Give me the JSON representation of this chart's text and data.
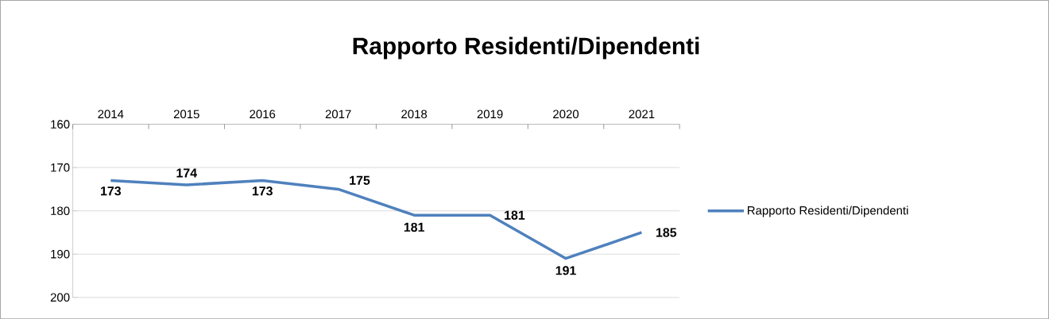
{
  "chart_data": {
    "type": "line",
    "title": "Rapporto Residenti/Dipendenti",
    "categories": [
      "2014",
      "2015",
      "2016",
      "2017",
      "2018",
      "2019",
      "2020",
      "2021"
    ],
    "series": [
      {
        "name": "Rapporto Residenti/Dipendenti",
        "color": "#4f81bd",
        "values": [
          173,
          174,
          173,
          175,
          181,
          181,
          191,
          185
        ],
        "value_labels": [
          "173",
          "174",
          "173",
          "175",
          "181",
          "181",
          "191",
          "185"
        ]
      }
    ],
    "ylim": [
      200,
      160
    ],
    "yticks": [
      160,
      170,
      180,
      190,
      200
    ],
    "grid": "y",
    "legend": "right",
    "marker": "none",
    "line_style": "solid"
  }
}
